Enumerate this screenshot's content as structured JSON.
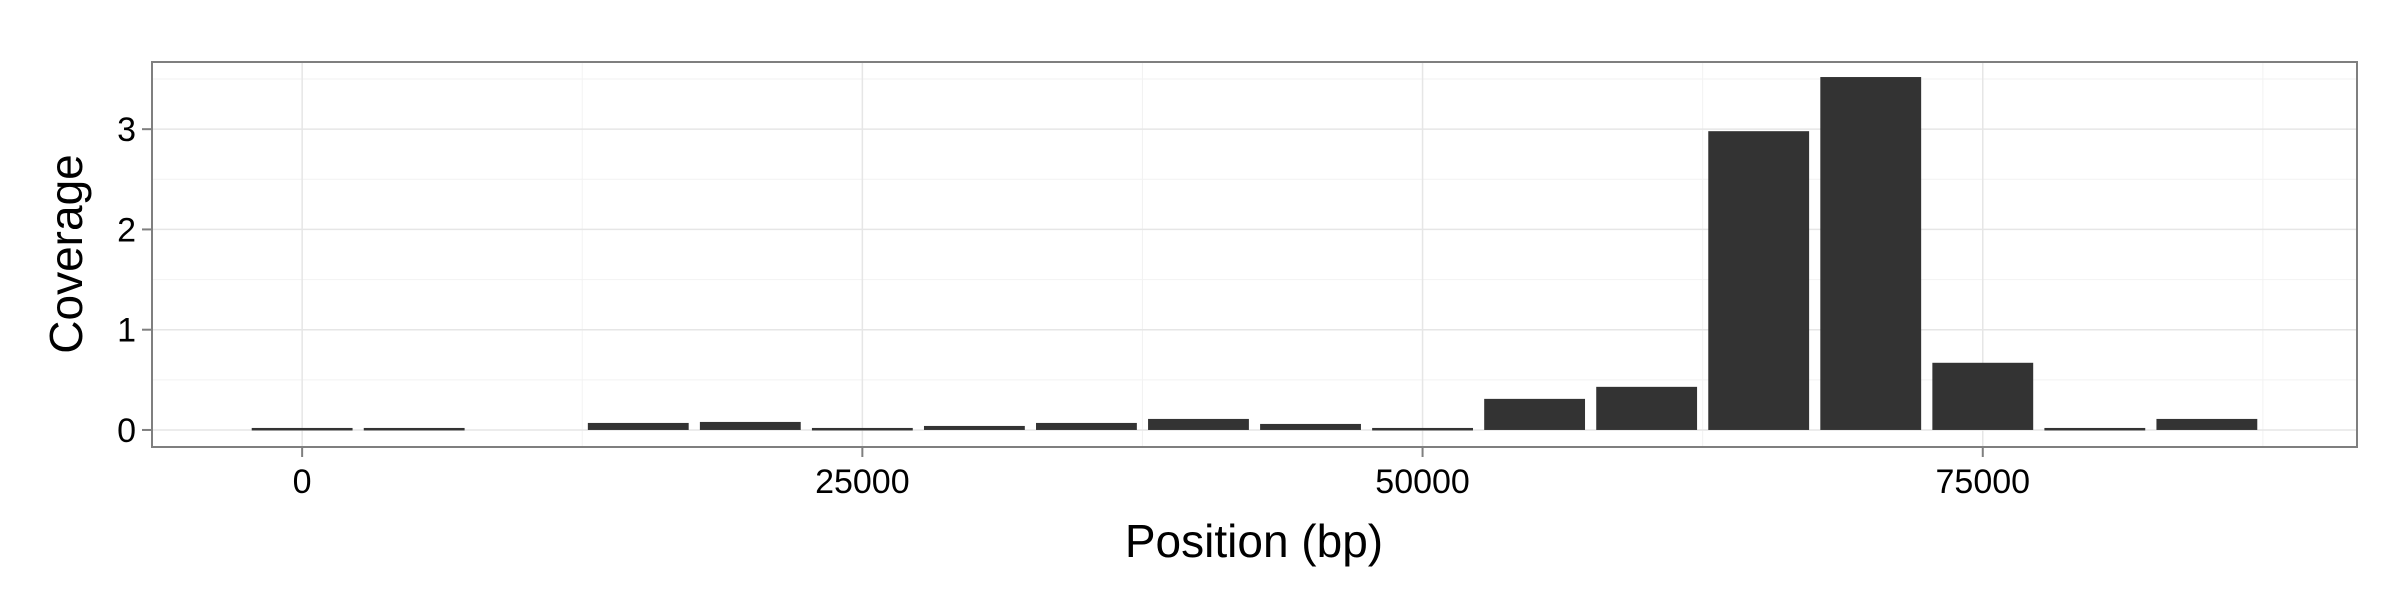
{
  "chart_data": {
    "type": "bar",
    "title": "",
    "xlabel": "Position (bp)",
    "ylabel": "Coverage",
    "x": [
      0,
      5000,
      15000,
      20000,
      25000,
      30000,
      35000,
      40000,
      45000,
      50000,
      55000,
      60000,
      65000,
      70000,
      75000,
      80000,
      85000
    ],
    "values": [
      0.02,
      0.02,
      0.07,
      0.08,
      0.02,
      0.04,
      0.07,
      0.11,
      0.06,
      0.02,
      0.31,
      0.43,
      2.98,
      3.52,
      0.67,
      0.02,
      0.11
    ],
    "bin_width": 5000,
    "xlim": [
      -6700,
      91700
    ],
    "ylim": [
      -0.17,
      3.67
    ],
    "x_ticks": [
      0,
      25000,
      50000,
      75000
    ],
    "x_tick_labels": [
      "0",
      "25000",
      "50000",
      "75000"
    ],
    "y_ticks": [
      0,
      1,
      2,
      3
    ],
    "y_tick_labels": [
      "0",
      "1",
      "2",
      "3"
    ],
    "grid": true,
    "legend": "none",
    "bar_color": "#333333",
    "grid_color": "#e6e6e6",
    "panel_border_color": "#7f7f7f"
  }
}
